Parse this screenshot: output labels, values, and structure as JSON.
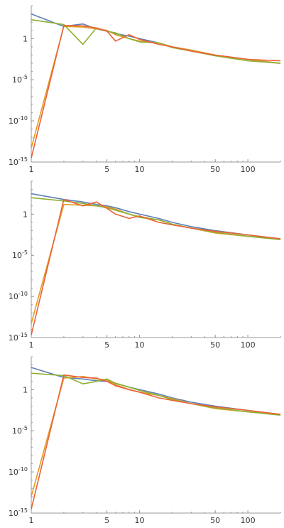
{
  "colors": {
    "blue": "#5e81b5",
    "yellow": "#e19c24",
    "green": "#8fb032",
    "red": "#eb6235",
    "axis": "#999999"
  },
  "chart_data": [
    {
      "type": "line",
      "xscale": "log",
      "yscale": "log",
      "xlim": [
        1,
        200
      ],
      "ylim": [
        1e-15,
        10000.0
      ],
      "grid": false,
      "xticks": [
        1,
        5,
        10,
        50,
        100
      ],
      "xtick_labels": [
        "1",
        "5",
        "10",
        "50",
        "100"
      ],
      "yticks": [
        1e-15,
        1e-10,
        1e-05,
        1
      ],
      "ytick_labels": [
        "10-15",
        "10-10",
        "10-5",
        "1"
      ],
      "series": [
        {
          "color": "blue",
          "x": [
            1,
            2,
            3,
            4,
            5,
            6,
            8,
            10,
            15,
            20,
            30,
            50,
            100,
            200
          ],
          "y": [
            1000,
            30,
            60,
            15,
            8,
            4,
            2,
            1,
            0.3,
            0.1,
            0.04,
            0.01,
            0.003,
            0.001
          ]
        },
        {
          "color": "yellow",
          "x": [
            1,
            2,
            3,
            4,
            5,
            6,
            8,
            10,
            15,
            20,
            30,
            50,
            100,
            200
          ],
          "y": [
            5e-14,
            30,
            25,
            15,
            10,
            3,
            1,
            0.5,
            0.3,
            0.1,
            0.04,
            0.01,
            0.003,
            0.001
          ]
        },
        {
          "color": "green",
          "x": [
            1,
            2,
            3,
            4,
            5,
            6,
            8,
            10,
            15,
            20,
            30,
            50,
            100,
            200
          ],
          "y": [
            200,
            50,
            0.2,
            20,
            8,
            5,
            1,
            0.4,
            0.3,
            0.08,
            0.03,
            0.008,
            0.002,
            0.001
          ]
        },
        {
          "color": "red",
          "x": [
            1,
            2,
            3,
            4,
            5,
            6,
            8,
            10,
            15,
            20,
            30,
            50,
            100,
            200
          ],
          "y": [
            3e-15,
            40,
            35,
            20,
            8,
            0.5,
            3,
            0.8,
            0.2,
            0.1,
            0.03,
            0.01,
            0.003,
            0.002
          ]
        }
      ]
    },
    {
      "type": "line",
      "xscale": "log",
      "yscale": "log",
      "xlim": [
        1,
        200
      ],
      "ylim": [
        1e-15,
        10000.0
      ],
      "grid": false,
      "xticks": [
        1,
        5,
        10,
        50,
        100
      ],
      "xtick_labels": [
        "1",
        "5",
        "10",
        "50",
        "100"
      ],
      "yticks": [
        1e-15,
        1e-10,
        1e-05,
        1
      ],
      "ytick_labels": [
        "10-15",
        "10-10",
        "10-5",
        "1"
      ],
      "series": [
        {
          "color": "blue",
          "x": [
            1,
            2,
            3,
            4,
            5,
            6,
            8,
            10,
            15,
            20,
            30,
            50,
            100,
            200
          ],
          "y": [
            300,
            60,
            30,
            15,
            10,
            6,
            2,
            1,
            0.3,
            0.1,
            0.03,
            0.01,
            0.003,
            0.001
          ]
        },
        {
          "color": "yellow",
          "x": [
            1,
            2,
            3,
            4,
            5,
            6,
            8,
            10,
            15,
            20,
            30,
            50,
            100,
            200
          ],
          "y": [
            5e-14,
            15,
            12,
            10,
            8,
            4,
            1,
            0.5,
            0.2,
            0.06,
            0.02,
            0.005,
            0.002,
            0.001
          ]
        },
        {
          "color": "green",
          "x": [
            1,
            2,
            3,
            4,
            5,
            6,
            8,
            10,
            15,
            20,
            30,
            50,
            100,
            200
          ],
          "y": [
            100,
            40,
            20,
            10,
            6,
            3,
            1,
            0.4,
            0.2,
            0.06,
            0.02,
            0.006,
            0.002,
            0.0008
          ]
        },
        {
          "color": "red",
          "x": [
            1,
            2,
            3,
            4,
            5,
            6,
            8,
            10,
            15,
            20,
            30,
            50,
            100,
            200
          ],
          "y": [
            2e-15,
            60,
            10,
            30,
            5,
            1,
            0.3,
            0.6,
            0.1,
            0.05,
            0.02,
            0.008,
            0.003,
            0.001
          ]
        }
      ]
    },
    {
      "type": "line",
      "xscale": "log",
      "yscale": "log",
      "xlim": [
        1,
        200
      ],
      "ylim": [
        1e-15,
        10000.0
      ],
      "grid": false,
      "xticks": [
        1,
        5,
        10,
        50,
        100
      ],
      "xtick_labels": [
        "1",
        "5",
        "10",
        "50",
        "100"
      ],
      "yticks": [
        1e-15,
        1e-10,
        1e-05,
        1
      ],
      "ytick_labels": [
        "10-15",
        "10-10",
        "10-5",
        "1"
      ],
      "series": [
        {
          "color": "blue",
          "x": [
            1,
            2,
            3,
            4,
            5,
            6,
            8,
            10,
            15,
            20,
            30,
            50,
            100,
            200
          ],
          "y": [
            500,
            30,
            20,
            12,
            10,
            6,
            2,
            1,
            0.3,
            0.1,
            0.03,
            0.01,
            0.003,
            0.001
          ]
        },
        {
          "color": "yellow",
          "x": [
            1,
            2,
            3,
            4,
            5,
            6,
            8,
            10,
            15,
            20,
            30,
            50,
            100,
            200
          ],
          "y": [
            1e-13,
            25,
            40,
            20,
            15,
            4,
            1,
            0.5,
            0.2,
            0.08,
            0.02,
            0.005,
            0.002,
            0.001
          ]
        },
        {
          "color": "green",
          "x": [
            1,
            2,
            3,
            4,
            5,
            6,
            8,
            10,
            15,
            20,
            30,
            50,
            100,
            200
          ],
          "y": [
            100,
            50,
            5,
            10,
            20,
            6,
            2,
            0.8,
            0.2,
            0.06,
            0.02,
            0.006,
            0.002,
            0.0008
          ]
        },
        {
          "color": "red",
          "x": [
            1,
            2,
            3,
            4,
            5,
            6,
            8,
            10,
            15,
            20,
            30,
            50,
            100,
            200
          ],
          "y": [
            3e-15,
            60,
            30,
            25,
            10,
            3,
            1,
            0.5,
            0.1,
            0.05,
            0.02,
            0.008,
            0.003,
            0.001
          ]
        }
      ]
    }
  ]
}
